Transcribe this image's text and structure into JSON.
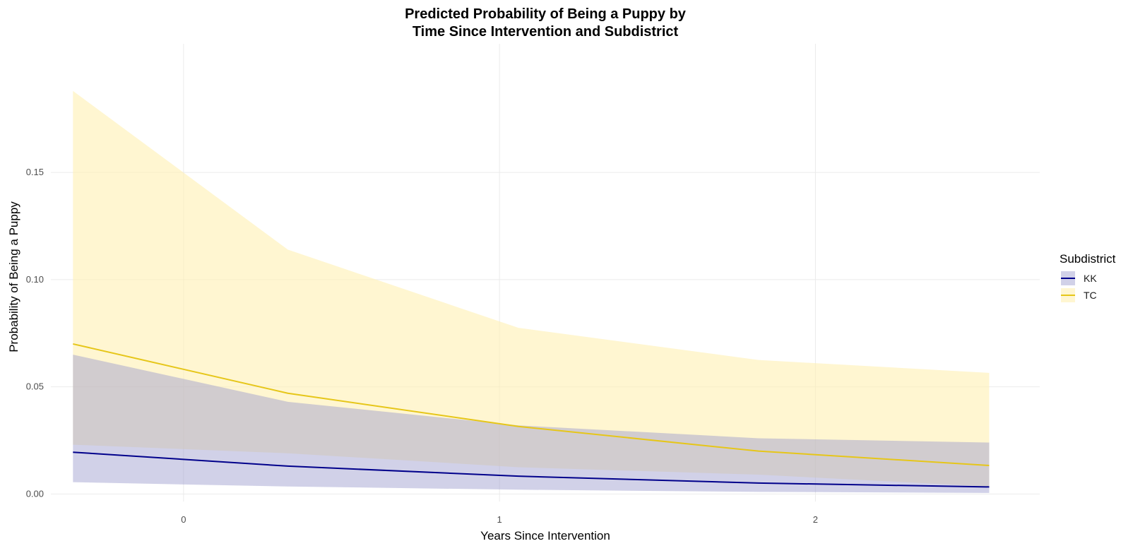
{
  "chart_data": {
    "type": "line",
    "title_line1": "Predicted Probability of Being a Puppy by",
    "title_line2": "Time Since Intervention and Subdistrict",
    "xlabel": "Years Since Intervention",
    "ylabel": "Probability of Being a Puppy",
    "xlim": [
      -0.42,
      2.71
    ],
    "ylim": [
      -0.0035,
      0.21
    ],
    "x_ticks": [
      0,
      1,
      2
    ],
    "x_tick_labels": [
      "0",
      "1",
      "2"
    ],
    "y_ticks": [
      0.0,
      0.05,
      0.1,
      0.15
    ],
    "y_tick_labels": [
      "0.00",
      "0.05",
      "0.10",
      "0.15"
    ],
    "grid": true,
    "legend": {
      "title": "Subdistrict",
      "position": "right"
    },
    "x": [
      -0.35,
      0.33,
      1.06,
      1.82,
      2.55
    ],
    "series": [
      {
        "name": "TC",
        "color": "#E6C619",
        "fill": "#FFF0B3",
        "fill_opacity": 0.6,
        "values": [
          0.07,
          0.047,
          0.0315,
          0.02,
          0.0133
        ],
        "lower": [
          0.023,
          0.019,
          0.0125,
          0.009,
          0.0035
        ],
        "upper": [
          0.188,
          0.114,
          0.0775,
          0.0625,
          0.0565
        ]
      },
      {
        "name": "KK",
        "color": "#00008B",
        "fill": "#9999CC",
        "fill_opacity": 0.45,
        "values": [
          0.0195,
          0.013,
          0.0083,
          0.0051,
          0.0033
        ],
        "lower": [
          0.0055,
          0.0035,
          0.002,
          0.001,
          0.0005
        ],
        "upper": [
          0.065,
          0.043,
          0.032,
          0.026,
          0.024
        ]
      }
    ]
  }
}
